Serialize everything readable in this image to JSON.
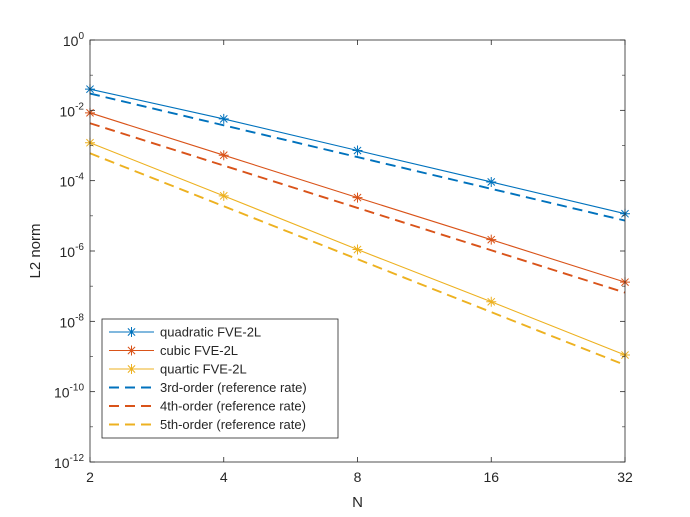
{
  "chart_data": {
    "type": "line",
    "title": "",
    "xlabel": "N",
    "ylabel": "L2  norm",
    "x_scale": "log2",
    "y_scale": "log10",
    "xlim": [
      2,
      32
    ],
    "ylim": [
      1e-12,
      1
    ],
    "x_ticks": [
      2,
      4,
      8,
      16,
      32
    ],
    "x_tick_labels": [
      "2",
      "4",
      "8",
      "16",
      "32"
    ],
    "y_ticks": [
      {
        "exp": -12,
        "base": "10",
        "sup": "-12"
      },
      {
        "exp": -10,
        "base": "10",
        "sup": "-10"
      },
      {
        "exp": -8,
        "base": "10",
        "sup": "-8"
      },
      {
        "exp": -6,
        "base": "10",
        "sup": "-6"
      },
      {
        "exp": -4,
        "base": "10",
        "sup": "-4"
      },
      {
        "exp": -2,
        "base": "10",
        "sup": "-2"
      },
      {
        "exp": 0,
        "base": "10",
        "sup": "0"
      }
    ],
    "grid": false,
    "legend_position": "bottom-left",
    "x": [
      2,
      4,
      8,
      16,
      32
    ],
    "series": [
      {
        "name": "quadratic FVE-2L",
        "values": [
          0.04,
          0.0057,
          0.00072,
          9.2e-05,
          1.15e-05
        ],
        "color": "#0072BD",
        "style": "solid",
        "marker": "asterisk"
      },
      {
        "name": "cubic FVE-2L",
        "values": [
          0.0085,
          0.00053,
          3.3e-05,
          2.1e-06,
          1.3e-07
        ],
        "color": "#D95319",
        "style": "solid",
        "marker": "asterisk"
      },
      {
        "name": "quartic FVE-2L",
        "values": [
          0.0012,
          3.7e-05,
          1.1e-06,
          3.6e-08,
          1.1e-09
        ],
        "color": "#EDB120",
        "style": "solid",
        "marker": "asterisk"
      },
      {
        "name": "3rd-order (reference rate)",
        "values": [
          0.03,
          0.00375,
          0.00046875,
          5.86e-05,
          7.32e-06
        ],
        "color": "#0072BD",
        "style": "dashed",
        "marker": "none"
      },
      {
        "name": "4th-order (reference rate)",
        "values": [
          0.0043,
          0.00026875,
          1.68e-05,
          1.05e-06,
          6.56e-08
        ],
        "color": "#D95319",
        "style": "dashed",
        "marker": "none"
      },
      {
        "name": "5th-order (reference rate)",
        "values": [
          0.0006,
          1.875e-05,
          5.86e-07,
          1.83e-08,
          5.72e-10
        ],
        "color": "#EDB120",
        "style": "dashed",
        "marker": "none"
      }
    ]
  }
}
